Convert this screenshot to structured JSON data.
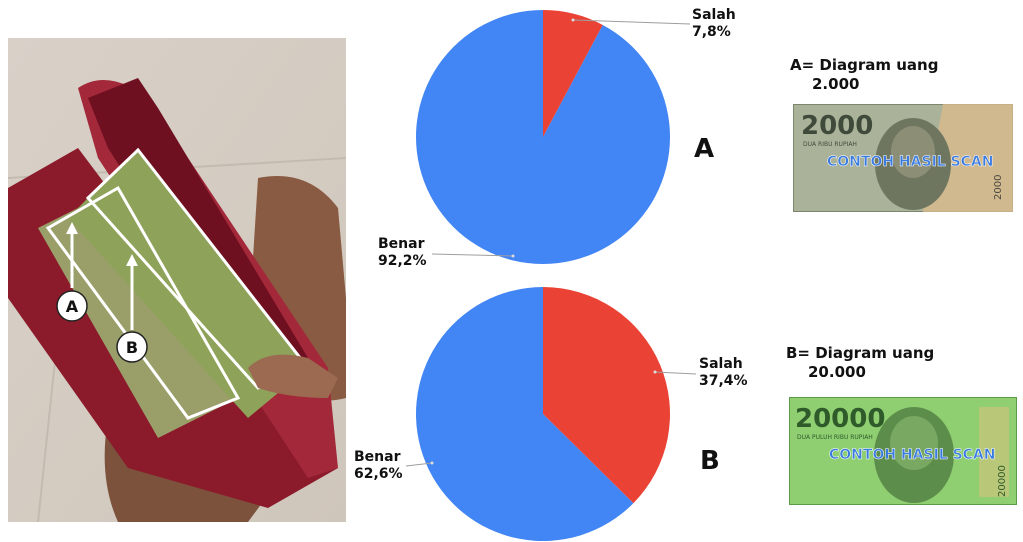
{
  "photo": {
    "marker_a": "A",
    "marker_b": "B"
  },
  "chart_data": [
    {
      "type": "pie",
      "name": "A",
      "slices": [
        {
          "label": "Salah",
          "value": 7.8,
          "display": "7,8%",
          "color": "#ea4335"
        },
        {
          "label": "Benar",
          "value": 92.2,
          "display": "92,2%",
          "color": "#4285f4"
        }
      ],
      "legend": "none"
    },
    {
      "type": "pie",
      "name": "B",
      "slices": [
        {
          "label": "Salah",
          "value": 37.4,
          "display": "37,4%",
          "color": "#ea4335"
        },
        {
          "label": "Benar",
          "value": 62.6,
          "display": "62,6%",
          "color": "#4285f4"
        }
      ],
      "legend": "none"
    }
  ],
  "notes": [
    {
      "caption": "A= Diagram uang",
      "value": "2.000",
      "numeral": "2000",
      "subtext": "DUA RIBU RUPIAH",
      "watermark": "CONTOH HASIL SCAN",
      "color": "#a9b49a"
    },
    {
      "caption": "B= Diagram uang",
      "value": "20.000",
      "numeral": "20000",
      "subtext": "DUA PULUH RIBU RUPIAH",
      "watermark": "CONTOH HASIL SCAN",
      "color": "#8fcf72"
    }
  ]
}
